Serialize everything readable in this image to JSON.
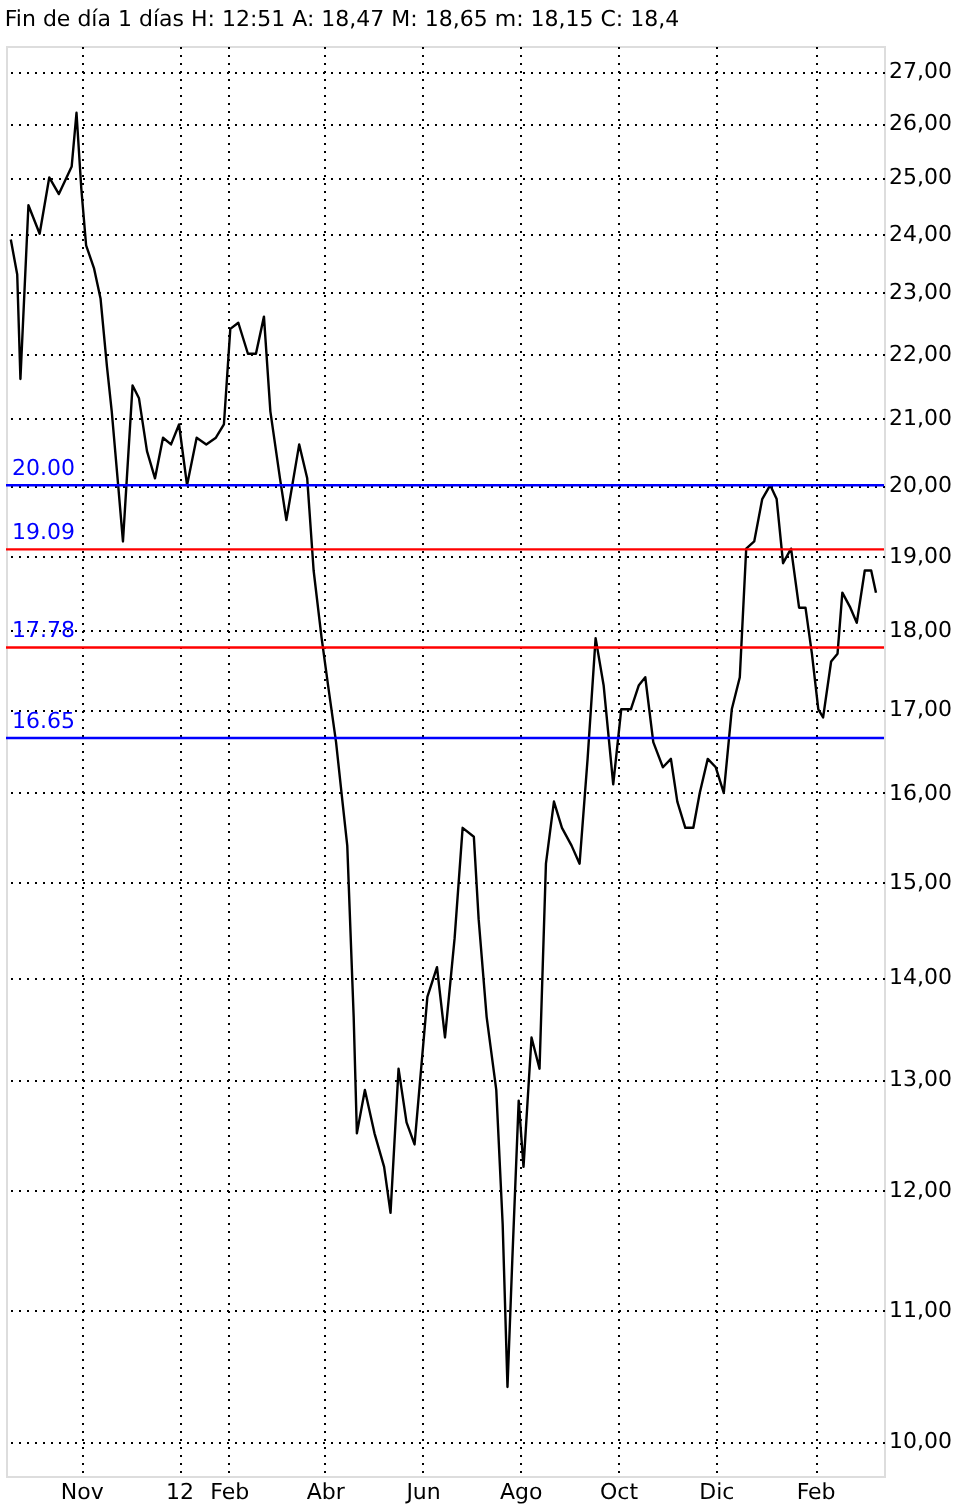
{
  "chart_data": {
    "type": "line",
    "title": "Fin de día 1 días  H: 12:51  A: 18,47  M: 18,65  m: 18,15  C: 18,4",
    "x": [
      "2011-09-18",
      "2011-09-22",
      "2011-09-24",
      "2011-09-29",
      "2011-10-06",
      "2011-10-12",
      "2011-10-18",
      "2011-10-26",
      "2011-10-29",
      "2011-11-01",
      "2011-11-04",
      "2011-11-09",
      "2011-11-13",
      "2011-11-17",
      "2011-11-20",
      "2011-11-24",
      "2011-11-27",
      "2011-12-03",
      "2011-12-07",
      "2011-12-12",
      "2011-12-17",
      "2011-12-22",
      "2011-12-27",
      "2012-01-01",
      "2012-01-06",
      "2012-01-12",
      "2012-01-18",
      "2012-01-24",
      "2012-01-29",
      "2012-02-02",
      "2012-02-07",
      "2012-02-13",
      "2012-02-18",
      "2012-02-23",
      "2012-02-27",
      "2012-03-04",
      "2012-03-08",
      "2012-03-16",
      "2012-03-21",
      "2012-03-25",
      "2012-03-30",
      "2012-04-03",
      "2012-04-08",
      "2012-04-12",
      "2012-04-15",
      "2012-04-19",
      "2012-04-21",
      "2012-04-26",
      "2012-05-02",
      "2012-05-08",
      "2012-05-12",
      "2012-05-17",
      "2012-05-22",
      "2012-05-27",
      "2012-06-04",
      "2012-06-10",
      "2012-06-15",
      "2012-06-21",
      "2012-06-26",
      "2012-07-03",
      "2012-07-06",
      "2012-07-11",
      "2012-07-17",
      "2012-07-21",
      "2012-07-24",
      "2012-07-27",
      "2012-07-31",
      "2012-08-03",
      "2012-08-08",
      "2012-08-13",
      "2012-08-17",
      "2012-08-22",
      "2012-08-27",
      "2012-09-02",
      "2012-09-07",
      "2012-09-12",
      "2012-09-17",
      "2012-09-22",
      "2012-09-28",
      "2012-10-03",
      "2012-10-09",
      "2012-10-14",
      "2012-10-18",
      "2012-10-23",
      "2012-10-29",
      "2012-11-03",
      "2012-11-07",
      "2012-11-12",
      "2012-11-17",
      "2012-11-21",
      "2012-11-26",
      "2012-12-01",
      "2012-12-06",
      "2012-12-11",
      "2012-12-16",
      "2012-12-20",
      "2012-12-25",
      "2012-12-30",
      "2013-01-04",
      "2013-01-08",
      "2013-01-12",
      "2013-01-17",
      "2013-01-22",
      "2013-01-26",
      "2013-01-30",
      "2013-02-03",
      "2013-02-06",
      "2013-02-11",
      "2013-02-15",
      "2013-02-18",
      "2013-02-23",
      "2013-02-27",
      "2013-03-04",
      "2013-03-08",
      "2013-03-11"
    ],
    "series": [
      {
        "color": "#000000",
        "values": [
          23.9,
          23.3,
          21.6,
          24.5,
          24.0,
          25.0,
          24.7,
          25.2,
          26.2,
          24.8,
          23.8,
          23.4,
          22.9,
          21.8,
          21.1,
          20.0,
          19.2,
          21.5,
          21.3,
          20.5,
          20.1,
          20.7,
          20.6,
          20.9,
          20.0,
          20.7,
          20.6,
          20.7,
          20.9,
          22.4,
          22.5,
          22.0,
          22.0,
          22.6,
          21.1,
          20.1,
          19.5,
          20.6,
          20.1,
          18.8,
          17.9,
          17.3,
          16.6,
          15.9,
          15.4,
          13.6,
          12.5,
          12.9,
          12.5,
          12.2,
          11.8,
          13.1,
          12.6,
          12.4,
          13.8,
          14.1,
          13.4,
          14.4,
          15.6,
          15.5,
          14.6,
          13.6,
          12.9,
          11.7,
          10.4,
          11.4,
          12.8,
          12.2,
          13.4,
          13.1,
          15.2,
          15.9,
          15.6,
          15.4,
          15.2,
          16.4,
          17.9,
          17.3,
          16.1,
          17.0,
          17.0,
          17.3,
          17.4,
          16.6,
          16.3,
          16.4,
          15.9,
          15.6,
          15.6,
          16.0,
          16.4,
          16.3,
          16.0,
          17.0,
          17.4,
          19.1,
          19.2,
          19.8,
          20.0,
          19.8,
          18.9,
          19.1,
          18.3,
          18.3,
          17.7,
          17.0,
          16.9,
          17.6,
          17.7,
          18.5,
          18.3,
          18.1,
          18.8,
          18.8,
          18.5
        ]
      }
    ],
    "xlim": [
      "2011-09-15",
      "2013-03-16"
    ],
    "xticks": [
      {
        "value": "2011-11-01",
        "label": "Nov"
      },
      {
        "value": "2012-01-01",
        "label": "12"
      },
      {
        "value": "2012-02-01",
        "label": "Feb"
      },
      {
        "value": "2012-04-01",
        "label": "Abr"
      },
      {
        "value": "2012-06-01",
        "label": "Jun"
      },
      {
        "value": "2012-08-01",
        "label": "Ago"
      },
      {
        "value": "2012-10-01",
        "label": "Oct"
      },
      {
        "value": "2012-12-01",
        "label": "Dic"
      },
      {
        "value": "2013-02-01",
        "label": "Feb"
      }
    ],
    "ylim": [
      9.75,
      27.5
    ],
    "yticks": [
      {
        "value": 10,
        "label": "10,00"
      },
      {
        "value": 11,
        "label": "11,00"
      },
      {
        "value": 12,
        "label": "12,00"
      },
      {
        "value": 13,
        "label": "13,00"
      },
      {
        "value": 14,
        "label": "14,00"
      },
      {
        "value": 15,
        "label": "15,00"
      },
      {
        "value": 16,
        "label": "16,00"
      },
      {
        "value": 17,
        "label": "17,00"
      },
      {
        "value": 18,
        "label": "18,00"
      },
      {
        "value": 19,
        "label": "19,00"
      },
      {
        "value": 20,
        "label": "20,00"
      },
      {
        "value": 21,
        "label": "21,00"
      },
      {
        "value": 22,
        "label": "22,00"
      },
      {
        "value": 23,
        "label": "23,00"
      },
      {
        "value": 24,
        "label": "24,00"
      },
      {
        "value": 25,
        "label": "25,00"
      },
      {
        "value": 26,
        "label": "26,00"
      },
      {
        "value": 27,
        "label": "27,00"
      }
    ],
    "log": true,
    "grid": true,
    "ref_lines": [
      {
        "axis": "y",
        "value": 20.0,
        "label": "20.00",
        "color": "#0000ff"
      },
      {
        "axis": "y",
        "value": 19.09,
        "label": "19.09",
        "color": "#ff0000"
      },
      {
        "axis": "y",
        "value": 17.78,
        "label": "17.78",
        "color": "#ff0000"
      },
      {
        "axis": "y",
        "value": 16.65,
        "label": "16.65",
        "color": "#0000ff"
      }
    ]
  }
}
